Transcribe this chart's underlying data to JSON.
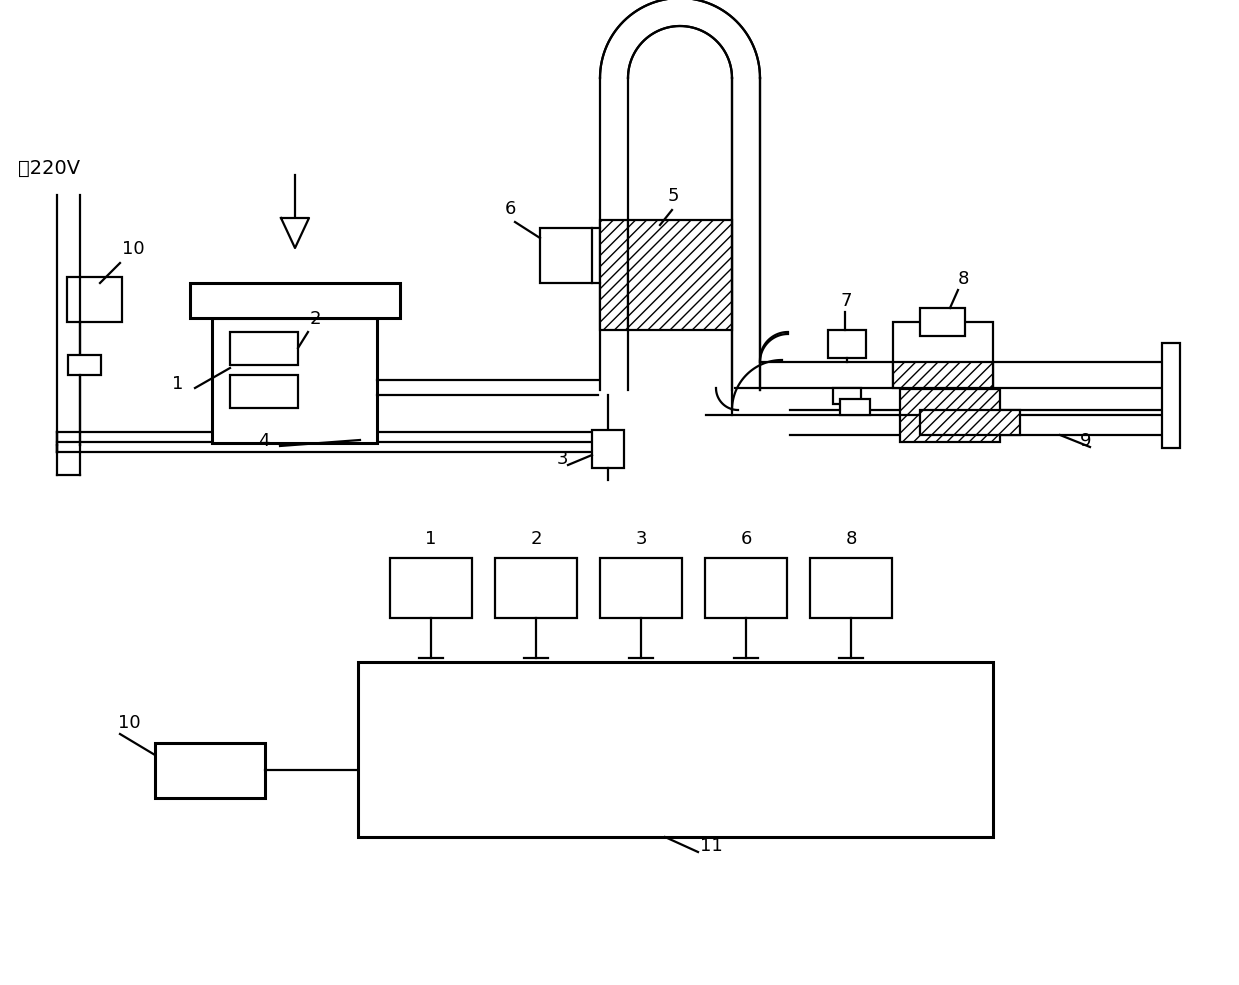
{
  "bg_color": "#ffffff",
  "lc": "#000000",
  "label_220v": "接220V",
  "label_1": "1",
  "label_2": "2",
  "label_3": "3",
  "label_4": "4",
  "label_5": "5",
  "label_6": "6",
  "label_7": "7",
  "label_8": "8",
  "label_9": "9",
  "label_10_top": "10",
  "label_10_bot": "10",
  "label_11": "11",
  "bottom_box_labels": [
    "1",
    "2",
    "3",
    "6",
    "8"
  ],
  "lw": 1.6,
  "lw2": 2.2
}
